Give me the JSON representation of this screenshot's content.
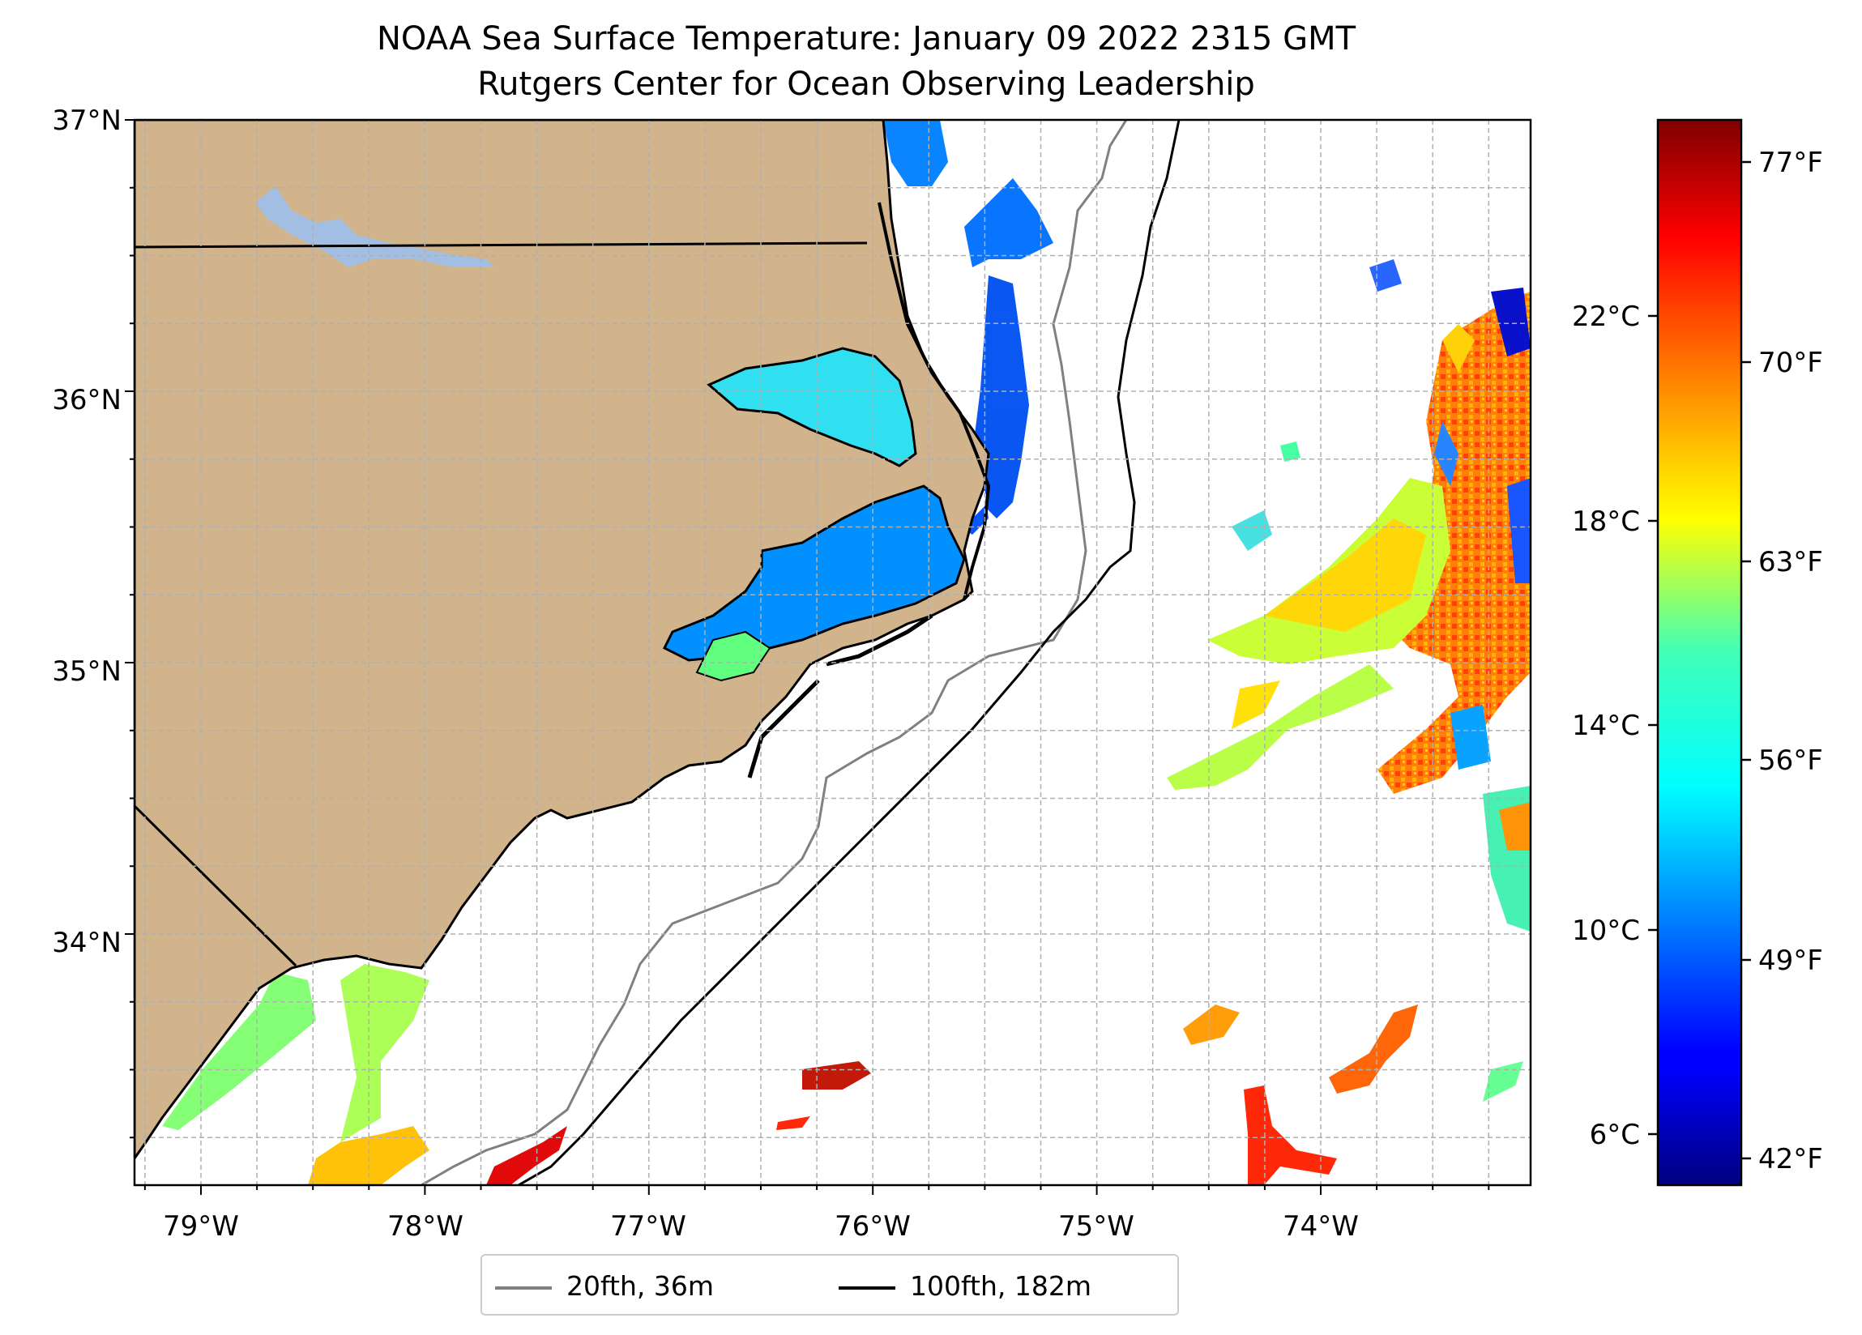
{
  "title": {
    "line1": "NOAA Sea Surface Temperature: January 09 2022 2315 GMT",
    "line2": "Rutgers Center for Ocean Observing Leadership"
  },
  "map": {
    "lat_labels": [
      "37°N",
      "36°N",
      "35°N",
      "34°N"
    ],
    "lon_labels": [
      "79°W",
      "78°W",
      "77°W",
      "76°W",
      "75°W",
      "74°W"
    ],
    "land_color": "#d2b48c",
    "lake_color": "#a3bee3",
    "grid": true
  },
  "colorbar": {
    "colormap": "jet",
    "celsius_labels": [
      "22°C",
      "18°C",
      "14°C",
      "10°C",
      "6°C"
    ],
    "fahrenheit_labels": [
      "77°F",
      "70°F",
      "63°F",
      "56°F",
      "49°F",
      "42°F"
    ]
  },
  "legend": {
    "items": [
      {
        "label": "20fth, 36m",
        "color": "#808080"
      },
      {
        "label": "100fth, 182m",
        "color": "#000000"
      }
    ]
  }
}
